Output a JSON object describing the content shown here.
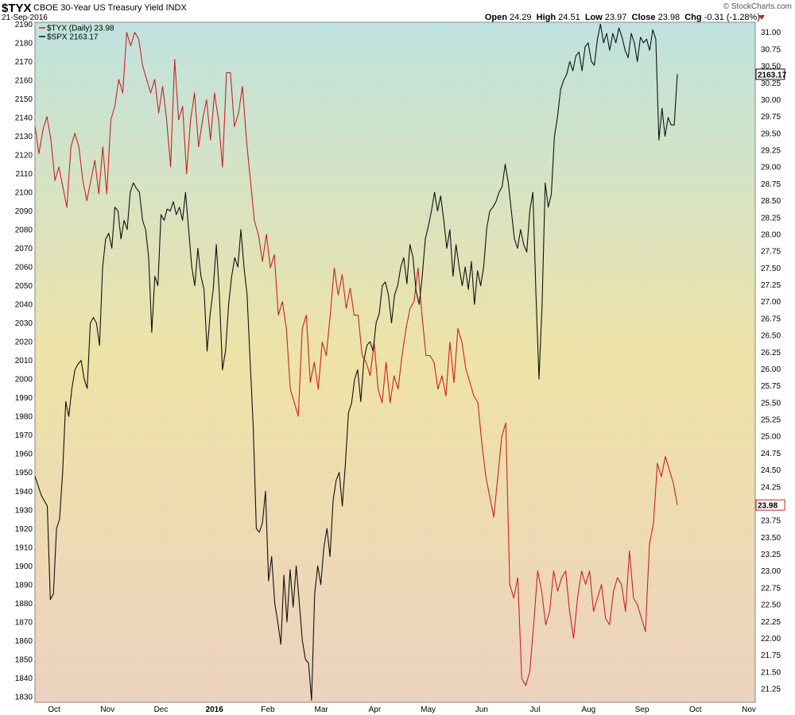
{
  "header": {
    "symbol": "$TYX",
    "description": "CBOE 30-Year US Treasury Yield",
    "exchange": "INDX",
    "date": "21-Sep-2016",
    "brand": "© StockCharts.com",
    "open_label": "Open",
    "open_value": "24.29",
    "high_label": "High",
    "high_value": "24.51",
    "low_label": "Low",
    "low_value": "23.97",
    "close_label": "Close",
    "close_value": "23.98",
    "chg_label": "Chg",
    "chg_value": "-0.31 (-1.28%)"
  },
  "colors": {
    "tyx": "#cc2222",
    "spx": "#111111",
    "bg_top": "#bfe3de",
    "bg_mid": "#efe3a6",
    "bg_bottom": "#edd2bf",
    "grid": "#c8c8c8"
  },
  "chart_data": {
    "type": "line",
    "x_ticks": [
      "Oct",
      "Nov",
      "Dec",
      "2016",
      "Feb",
      "Mar",
      "Apr",
      "May",
      "Jun",
      "Jul",
      "Aug",
      "Sep",
      "Oct",
      "Nov"
    ],
    "left_axis": {
      "ticks": [
        "2190",
        "2180",
        "2170",
        "2160",
        "2150",
        "2140",
        "2130",
        "2120",
        "2110",
        "2100",
        "2090",
        "2080",
        "2070",
        "2060",
        "2050",
        "2040",
        "2030",
        "2020",
        "2010",
        "2000",
        "1990",
        "1980",
        "1970",
        "1960",
        "1950",
        "1940",
        "1930",
        "1920",
        "1910",
        "1900",
        "1890",
        "1880",
        "1870",
        "1860",
        "1850",
        "1840",
        "1830"
      ],
      "range": [
        1827,
        2191
      ]
    },
    "right_axis": {
      "ticks": [
        "31.00",
        "30.75",
        "30.50",
        "30.25",
        "30.00",
        "29.75",
        "29.50",
        "29.25",
        "29.00",
        "28.75",
        "28.50",
        "28.25",
        "28.00",
        "27.75",
        "27.50",
        "27.25",
        "27.00",
        "26.75",
        "26.50",
        "26.25",
        "26.00",
        "25.75",
        "25.50",
        "25.25",
        "25.00",
        "24.75",
        "24.50",
        "24.25",
        "24.00",
        "23.75",
        "23.50",
        "23.25",
        "23.00",
        "22.75",
        "22.50",
        "22.25",
        "22.00",
        "21.75",
        "21.50",
        "21.25"
      ],
      "range": [
        21.05,
        31.15
      ]
    },
    "legend": {
      "placement": "top-left"
    },
    "series": [
      {
        "name": "$TYX (Daily) 23.98",
        "axis": "right",
        "color": "#cc2222",
        "last_label": "23.98",
        "values": [
          29.6,
          29.2,
          29.55,
          29.75,
          29.4,
          28.8,
          29.0,
          28.7,
          28.4,
          29.3,
          29.5,
          29.3,
          28.8,
          28.5,
          28.8,
          29.1,
          28.6,
          29.3,
          28.6,
          29.7,
          29.9,
          30.3,
          30.1,
          31.0,
          30.8,
          31.0,
          30.9,
          30.5,
          30.3,
          30.1,
          30.3,
          29.8,
          30.2,
          29.7,
          29.0,
          30.6,
          29.7,
          29.9,
          28.9,
          29.7,
          30.1,
          29.3,
          29.7,
          30.0,
          29.4,
          30.1,
          29.7,
          29.0,
          30.4,
          30.4,
          29.6,
          29.8,
          30.2,
          29.4,
          28.8,
          28.2,
          28.0,
          27.6,
          28.0,
          27.5,
          27.7,
          26.8,
          27.0,
          26.6,
          25.7,
          25.5,
          25.3,
          26.6,
          26.8,
          25.8,
          26.1,
          25.7,
          26.4,
          26.2,
          26.8,
          27.5,
          27.1,
          27.4,
          26.9,
          27.2,
          26.8,
          26.8,
          26.2,
          26.1,
          25.9,
          26.4,
          25.7,
          25.5,
          26.1,
          25.5,
          25.9,
          25.7,
          26.2,
          26.6,
          26.9,
          27.0,
          27.5,
          26.8,
          26.2,
          26.2,
          26.1,
          25.7,
          25.9,
          25.6,
          26.4,
          25.8,
          26.6,
          26.4,
          26.0,
          25.8,
          25.6,
          25.5,
          24.9,
          24.4,
          24.1,
          23.8,
          24.4,
          25.0,
          25.2,
          22.8,
          22.6,
          22.9,
          21.4,
          21.3,
          21.5,
          22.2,
          23.0,
          22.7,
          22.2,
          22.4,
          23.0,
          22.7,
          22.9,
          23.0,
          22.4,
          22.0,
          22.6,
          23.0,
          22.8,
          23.0,
          22.4,
          22.6,
          22.8,
          22.3,
          22.2,
          22.7,
          22.9,
          22.8,
          22.4,
          23.3,
          22.6,
          22.5,
          22.3,
          22.1,
          23.4,
          23.7,
          24.6,
          24.4,
          24.7,
          24.5,
          24.3,
          23.98
        ]
      },
      {
        "name": "$SPX 2163.17",
        "axis": "left",
        "color": "#111111",
        "last_label": "2163.17",
        "values": [
          1948,
          1943,
          1938,
          1935,
          1932,
          1882,
          1885,
          1920,
          1925,
          1950,
          1988,
          1980,
          1995,
          2005,
          2008,
          2010,
          2000,
          1995,
          2030,
          2033,
          2030,
          2018,
          2060,
          2075,
          2078,
          2070,
          2092,
          2090,
          2075,
          2085,
          2080,
          2100,
          2105,
          2102,
          2100,
          2085,
          2080,
          2065,
          2025,
          2055,
          2050,
          2088,
          2085,
          2091,
          2090,
          2095,
          2088,
          2092,
          2085,
          2100,
          2080,
          2060,
          2050,
          2070,
          2055,
          2048,
          2015,
          2035,
          2048,
          2072,
          2045,
          2005,
          2015,
          2040,
          2055,
          2065,
          2060,
          2080,
          2060,
          2045,
          2010,
          1975,
          1920,
          1918,
          1923,
          1940,
          1892,
          1905,
          1880,
          1870,
          1858,
          1895,
          1870,
          1898,
          1878,
          1900,
          1880,
          1860,
          1850,
          1848,
          1828,
          1885,
          1900,
          1890,
          1910,
          1920,
          1905,
          1935,
          1946,
          1950,
          1932,
          1955,
          1982,
          1987,
          2000,
          2005,
          1988,
          2010,
          2018,
          2020,
          2015,
          2030,
          2035,
          2050,
          2052,
          2045,
          2030,
          2045,
          2050,
          2060,
          2065,
          2051,
          2072,
          2065,
          2047,
          2040,
          2055,
          2075,
          2082,
          2090,
          2100,
          2090,
          2098,
          2085,
          2070,
          2080,
          2055,
          2072,
          2060,
          2050,
          2060,
          2048,
          2063,
          2040,
          2058,
          2050,
          2060,
          2081,
          2090,
          2092,
          2095,
          2100,
          2103,
          2115,
          2105,
          2090,
          2075,
          2070,
          2080,
          2072,
          2068,
          2090,
          2100,
          2045,
          2000,
          2040,
          2105,
          2092,
          2099,
          2130,
          2140,
          2155,
          2160,
          2163,
          2170,
          2165,
          2173,
          2175,
          2165,
          2178,
          2180,
          2170,
          2168,
          2182,
          2190,
          2180,
          2185,
          2176,
          2185,
          2180,
          2188,
          2183,
          2176,
          2172,
          2185,
          2180,
          2170,
          2183,
          2180,
          2182,
          2176,
          2187,
          2182,
          2128,
          2145,
          2130,
          2140,
          2136,
          2136,
          2163.17
        ]
      }
    ]
  }
}
